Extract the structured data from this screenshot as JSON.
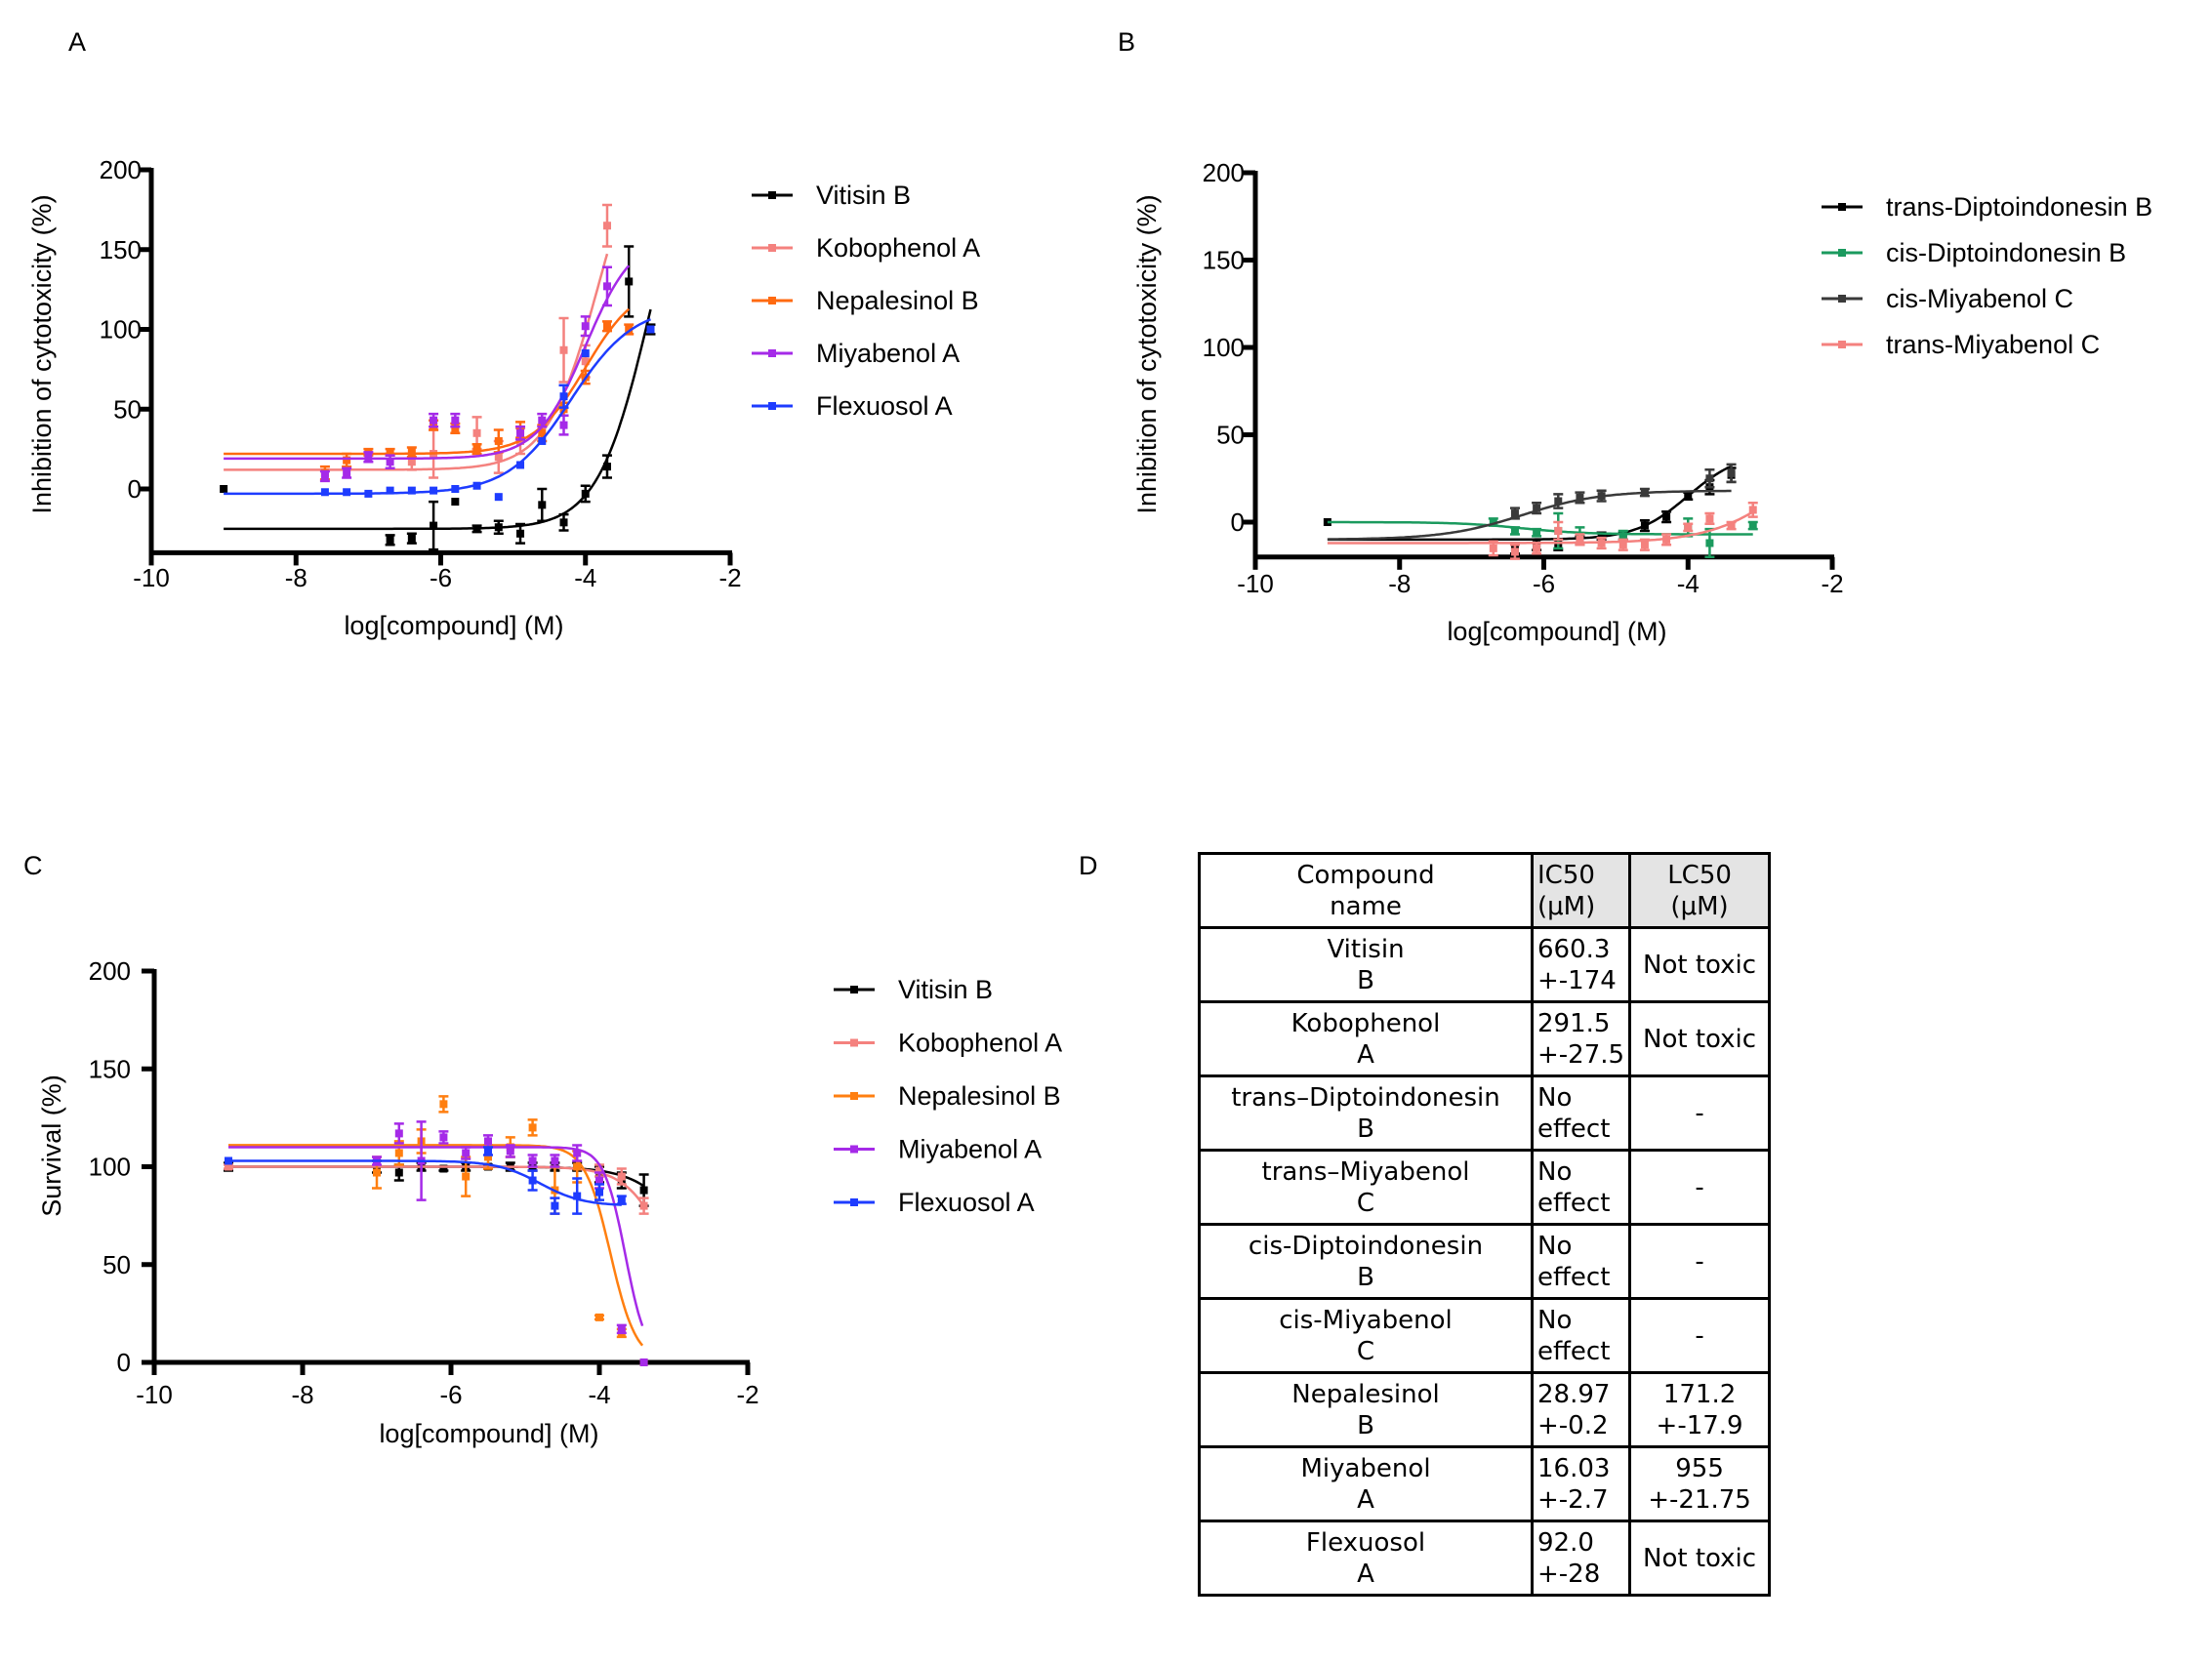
{
  "panels": {
    "a": "A",
    "b": "B",
    "c": "C",
    "d": "D"
  },
  "chart_data": [
    {
      "id": "A",
      "type": "line",
      "xlabel": "log[compound] (M)",
      "ylabel": "Inhibition of cytotoxicity (%)",
      "xlim": [
        -10,
        -2
      ],
      "ylim": [
        -40,
        200
      ],
      "xticks": [
        -10,
        -8,
        -6,
        -4,
        -2
      ],
      "yticks": [
        0,
        50,
        100,
        150,
        200
      ],
      "legend_position": "right",
      "series": [
        {
          "name": "Vitisin B",
          "color": "#000000",
          "fit": {
            "left": -25,
            "right": 250,
            "logEC50": -3.1,
            "hill": 1.2,
            "xmin": -9,
            "xmax": -3.1
          },
          "points": [
            [
              -9,
              0,
              0
            ],
            [
              -6.7,
              -32,
              3
            ],
            [
              -6.4,
              -31,
              3
            ],
            [
              -6.1,
              -23,
              15
            ],
            [
              -5.8,
              -8,
              0
            ],
            [
              -5.5,
              -25,
              2
            ],
            [
              -5.2,
              -24,
              4
            ],
            [
              -4.9,
              -28,
              6
            ],
            [
              -4.6,
              -10,
              10
            ],
            [
              -4.3,
              -21,
              5
            ],
            [
              -4,
              -3,
              5
            ],
            [
              -3.7,
              14,
              7
            ],
            [
              -3.4,
              130,
              22
            ],
            [
              -3.1,
              100,
              3
            ]
          ]
        },
        {
          "name": "Kobophenol A",
          "color": "#f4817e",
          "fit": {
            "left": 12,
            "right": 250,
            "logEC50": -3.8,
            "hill": 1.2,
            "xmin": -9,
            "xmax": -3.7
          },
          "points": [
            [
              -6.4,
              17,
              5
            ],
            [
              -6.1,
              22,
              15
            ],
            [
              -5.5,
              35,
              10
            ],
            [
              -5.2,
              20,
              10
            ],
            [
              -4.9,
              30,
              8
            ],
            [
              -4.3,
              87,
              20
            ],
            [
              -4,
              80,
              10
            ],
            [
              -3.7,
              165,
              13
            ]
          ]
        },
        {
          "name": "Nepalesinol B",
          "color": "#ff6a10",
          "fit": {
            "left": 22,
            "right": 130,
            "logEC50": -4.0,
            "hill": 1.2,
            "xmin": -9,
            "xmax": -3.4
          },
          "points": [
            [
              -7.6,
              10,
              4
            ],
            [
              -7.3,
              18,
              4
            ],
            [
              -7,
              23,
              2
            ],
            [
              -6.7,
              23,
              2
            ],
            [
              -6.4,
              23,
              3
            ],
            [
              -6.1,
              40,
              3
            ],
            [
              -5.8,
              38,
              3
            ],
            [
              -5.5,
              25,
              3
            ],
            [
              -5.2,
              30,
              7
            ],
            [
              -4.9,
              37,
              5
            ],
            [
              -4.6,
              35,
              5
            ],
            [
              -4.3,
              50,
              4
            ],
            [
              -4,
              70,
              4
            ],
            [
              -3.7,
              102,
              3
            ],
            [
              -3.4,
              100,
              3
            ]
          ]
        },
        {
          "name": "Miyabenol A",
          "color": "#a52ae8",
          "fit": {
            "left": 19,
            "right": 160,
            "logEC50": -4.0,
            "hill": 1.3,
            "xmin": -9,
            "xmax": -3.4
          },
          "points": [
            [
              -7.6,
              8,
              3
            ],
            [
              -7.3,
              10,
              3
            ],
            [
              -7,
              20,
              3
            ],
            [
              -6.7,
              17,
              4
            ],
            [
              -6.1,
              43,
              4
            ],
            [
              -5.8,
              43,
              4
            ],
            [
              -4.9,
              35,
              4
            ],
            [
              -4.6,
              43,
              4
            ],
            [
              -4.3,
              40,
              6
            ],
            [
              -4,
              102,
              6
            ],
            [
              -3.7,
              127,
              12
            ]
          ]
        },
        {
          "name": "Flexuosol A",
          "color": "#1e3cff",
          "fit": {
            "left": -3,
            "right": 115,
            "logEC50": -4.2,
            "hill": 1.0,
            "xmin": -9,
            "xmax": -3.1
          },
          "points": [
            [
              -7.6,
              -2,
              0
            ],
            [
              -7.3,
              -2,
              0
            ],
            [
              -7,
              -3,
              0
            ],
            [
              -6.7,
              -1,
              0
            ],
            [
              -6.4,
              -1,
              0
            ],
            [
              -6.1,
              -1,
              0
            ],
            [
              -5.8,
              0,
              0
            ],
            [
              -5.5,
              2,
              0
            ],
            [
              -5.2,
              -5,
              0
            ],
            [
              -4.9,
              15,
              0
            ],
            [
              -4.6,
              30,
              0
            ],
            [
              -4.3,
              58,
              7
            ],
            [
              -4,
              85,
              0
            ],
            [
              -3.1,
              100,
              0
            ]
          ]
        }
      ]
    },
    {
      "id": "B",
      "type": "line",
      "xlabel": "log[compound] (M)",
      "ylabel": "Inhibition of cytotoxicity (%)",
      "xlim": [
        -10,
        -2
      ],
      "ylim": [
        -20,
        200
      ],
      "xticks": [
        -10,
        -8,
        -6,
        -4,
        -2
      ],
      "yticks": [
        0,
        50,
        100,
        150,
        200
      ],
      "legend_position": "top-right",
      "series": [
        {
          "name": "trans-Diptoindonesin B",
          "color": "#000000",
          "fit": {
            "left": -10,
            "right": 40,
            "logEC50": -4.0,
            "hill": 1.2,
            "xmin": -9,
            "xmax": -3.4
          },
          "points": [
            [
              -9,
              0,
              0
            ],
            [
              -6.4,
              -15,
              3
            ],
            [
              -6.1,
              -13,
              3
            ],
            [
              -5.8,
              -13,
              3
            ],
            [
              -5.5,
              -10,
              2
            ],
            [
              -5.2,
              -8,
              2
            ],
            [
              -4.9,
              -8,
              2
            ],
            [
              -4.6,
              -2,
              3
            ],
            [
              -4.3,
              3,
              3
            ],
            [
              -4,
              15,
              2
            ],
            [
              -3.7,
              20,
              4
            ],
            [
              -3.4,
              27,
              4
            ]
          ]
        },
        {
          "name": "cis-Diptoindonesin B",
          "color": "#1b9a5e",
          "fit": {
            "left": 0,
            "right": -7,
            "logEC50": -6.3,
            "hill": 1.0,
            "xmin": -9,
            "xmax": -3.1
          },
          "points": [
            [
              -6.7,
              0,
              2
            ],
            [
              -6.4,
              -5,
              2
            ],
            [
              -6.1,
              -6,
              2
            ],
            [
              -5.8,
              -5,
              10
            ],
            [
              -5.5,
              -8,
              5
            ],
            [
              -4.9,
              -8,
              3
            ],
            [
              -4,
              -3,
              5
            ],
            [
              -3.7,
              -12,
              8
            ],
            [
              -3.1,
              -2,
              2
            ]
          ]
        },
        {
          "name": "cis-Miyabenol C",
          "color": "#3a3a3a",
          "fit": {
            "left": -10,
            "right": 18,
            "logEC50": -6.3,
            "hill": 0.8,
            "xmin": -9,
            "xmax": -3.4
          },
          "points": [
            [
              -6.4,
              5,
              3
            ],
            [
              -6.1,
              8,
              3
            ],
            [
              -5.8,
              12,
              4
            ],
            [
              -5.5,
              14,
              3
            ],
            [
              -5.2,
              15,
              3
            ],
            [
              -4.6,
              17,
              2
            ],
            [
              -3.7,
              25,
              5
            ],
            [
              -3.4,
              28,
              5
            ]
          ]
        },
        {
          "name": "trans-Miyabenol C",
          "color": "#f4817e",
          "fit": {
            "left": -12,
            "right": 60,
            "logEC50": -2.5,
            "hill": 0.8,
            "xmin": -9,
            "xmax": -3.1
          },
          "points": [
            [
              -6.7,
              -15,
              4
            ],
            [
              -6.4,
              -17,
              4
            ],
            [
              -6.1,
              -15,
              3
            ],
            [
              -5.8,
              -5,
              5
            ],
            [
              -5.5,
              -10,
              3
            ],
            [
              -5.2,
              -12,
              3
            ],
            [
              -4.9,
              -13,
              3
            ],
            [
              -4.6,
              -13,
              3
            ],
            [
              -4.3,
              -10,
              3
            ],
            [
              -4,
              -3,
              2
            ],
            [
              -3.7,
              2,
              3
            ],
            [
              -3.4,
              -2,
              2
            ],
            [
              -3.1,
              7,
              4
            ]
          ]
        }
      ]
    },
    {
      "id": "C",
      "type": "line",
      "xlabel": "log[compound] (M)",
      "ylabel": "Survival (%)",
      "xlim": [
        -10,
        -2
      ],
      "ylim": [
        0,
        200
      ],
      "xticks": [
        -10,
        -8,
        -6,
        -4,
        -2
      ],
      "yticks": [
        0,
        50,
        100,
        150,
        200
      ],
      "legend_position": "right",
      "series": [
        {
          "name": "Vitisin B",
          "color": "#000000",
          "fit": {
            "left": 100,
            "right": 0,
            "logEC50": -2.6,
            "hill": 1.2,
            "xmin": -9,
            "xmax": -3.4
          },
          "points": [
            [
              -9,
              100,
              2
            ],
            [
              -7,
              100,
              3
            ],
            [
              -6.7,
              97,
              4
            ],
            [
              -6.4,
              100,
              2
            ],
            [
              -6.1,
              99,
              1
            ],
            [
              -5.8,
              100,
              2
            ],
            [
              -5.5,
              100,
              1
            ],
            [
              -5.2,
              100,
              2
            ],
            [
              -4.9,
              100,
              2
            ],
            [
              -4.6,
              100,
              2
            ],
            [
              -4.3,
              100,
              2
            ],
            [
              -4,
              96,
              4
            ],
            [
              -3.7,
              93,
              4
            ],
            [
              -3.4,
              88,
              8
            ]
          ]
        },
        {
          "name": "Kobophenol A",
          "color": "#f4817e",
          "fit": {
            "left": 100,
            "right": 0,
            "logEC50": -3.0,
            "hill": 1.5,
            "xmin": -9,
            "xmax": -3.4
          },
          "points": [
            [
              -9,
              100,
              1
            ],
            [
              -4,
              98,
              3
            ],
            [
              -3.7,
              95,
              4
            ],
            [
              -3.4,
              80,
              4
            ]
          ]
        },
        {
          "name": "Nepalesinol B",
          "color": "#ff7f10",
          "fit": {
            "left": 111,
            "right": 0,
            "logEC50": -3.85,
            "hill": 2.5,
            "xmin": -9,
            "xmax": -3.42
          },
          "points": [
            [
              -7,
              97,
              8
            ],
            [
              -6.7,
              107,
              6
            ],
            [
              -6.4,
              113,
              6
            ],
            [
              -6.1,
              132,
              4
            ],
            [
              -5.8,
              95,
              10
            ],
            [
              -5.5,
              105,
              6
            ],
            [
              -5.2,
              110,
              5
            ],
            [
              -4.9,
              120,
              4
            ],
            [
              -4.6,
              88,
              12
            ],
            [
              -4.3,
              100,
              8
            ],
            [
              -4,
              23,
              1
            ],
            [
              -3.7,
              15,
              2
            ],
            [
              -3.4,
              0,
              0
            ]
          ]
        },
        {
          "name": "Miyabenol A",
          "color": "#a52ae8",
          "fit": {
            "left": 110,
            "right": 0,
            "logEC50": -3.65,
            "hill": 3.0,
            "xmin": -9,
            "xmax": -3.42
          },
          "points": [
            [
              -7,
              103,
              2
            ],
            [
              -6.7,
              117,
              5
            ],
            [
              -6.4,
              103,
              20
            ],
            [
              -6.1,
              115,
              3
            ],
            [
              -5.8,
              107,
              3
            ],
            [
              -5.5,
              113,
              3
            ],
            [
              -5.2,
              108,
              3
            ],
            [
              -4.9,
              103,
              3
            ],
            [
              -4.6,
              103,
              3
            ],
            [
              -4.3,
              107,
              4
            ],
            [
              -4,
              93,
              4
            ],
            [
              -3.7,
              17,
              2
            ],
            [
              -3.4,
              0,
              0
            ]
          ]
        },
        {
          "name": "Flexuosol A",
          "color": "#1e3cff",
          "fit": {
            "left": 103,
            "right": 80,
            "logEC50": -4.8,
            "hill": 1.5,
            "xmin": -9,
            "xmax": -3.7
          },
          "points": [
            [
              -9,
              103,
              0
            ],
            [
              -5.5,
              108,
              2
            ],
            [
              -4.9,
              93,
              5
            ],
            [
              -4.6,
              80,
              4
            ],
            [
              -4.3,
              85,
              9
            ],
            [
              -4,
              87,
              4
            ],
            [
              -3.7,
              83,
              2
            ]
          ]
        }
      ]
    }
  ],
  "table": {
    "headers": [
      "Compound\nname",
      "IC50\n(μM)",
      "LC50\n(μM)"
    ],
    "rows": [
      [
        "Vitisin\nB",
        "660.3\n+-174",
        "Not toxic"
      ],
      [
        "Kobophenol\nA",
        "291.5\n+-27.5",
        "Not toxic"
      ],
      [
        "trans–Diptoindonesin\nB",
        "No\neffect",
        "-"
      ],
      [
        "trans–Miyabenol\nC",
        "No\neffect",
        "-"
      ],
      [
        "cis-Diptoindonesin\nB",
        "No\neffect",
        "-"
      ],
      [
        "cis-Miyabenol\nC",
        "No\neffect",
        "-"
      ],
      [
        "Nepalesinol\nB",
        "28.97\n+-0.2",
        "171.2\n+-17.9"
      ],
      [
        "Miyabenol\nA",
        "16.03\n+-2.7",
        "955\n+-21.75"
      ],
      [
        "Flexuosol\nA",
        "92.0\n+-28",
        "Not toxic"
      ]
    ]
  }
}
